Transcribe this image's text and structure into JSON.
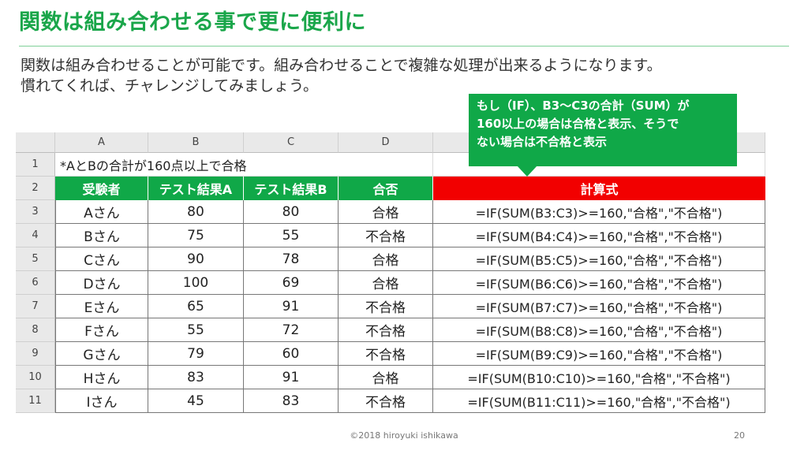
{
  "title": "関数は組み合わせる事で更に便利に",
  "description": [
    "関数は組み合わせることが可能です。組み合わせることで複雑な処理が出来るようになります。",
    "慣れてくれば、チャレンジしてみましょう。"
  ],
  "callout": [
    "もし（IF）、B3～C3の合計（SUM）が",
    "160以上の場合は合格と表示、そうで",
    "ない場合は不合格と表示"
  ],
  "sheet": {
    "column_letters": [
      "A",
      "B",
      "C",
      "D",
      ""
    ],
    "row_numbers": [
      "1",
      "2",
      "3",
      "4",
      "5",
      "6",
      "7",
      "8",
      "9",
      "10",
      "11"
    ],
    "note": "*AとBの合計が160点以上で合格",
    "headers": [
      "受験者",
      "テスト結果A",
      "テスト結果B",
      "合否",
      "計算式"
    ],
    "rows": [
      [
        "Aさん",
        "80",
        "80",
        "合格",
        "=IF(SUM(B3:C3)>=160,\"合格\",\"不合格\")"
      ],
      [
        "Bさん",
        "75",
        "55",
        "不合格",
        "=IF(SUM(B4:C4)>=160,\"合格\",\"不合格\")"
      ],
      [
        "Cさん",
        "90",
        "78",
        "合格",
        "=IF(SUM(B5:C5)>=160,\"合格\",\"不合格\")"
      ],
      [
        "Dさん",
        "100",
        "69",
        "合格",
        "=IF(SUM(B6:C6)>=160,\"合格\",\"不合格\")"
      ],
      [
        "Eさん",
        "65",
        "91",
        "不合格",
        "=IF(SUM(B7:C7)>=160,\"合格\",\"不合格\")"
      ],
      [
        "Fさん",
        "55",
        "72",
        "不合格",
        "=IF(SUM(B8:C8)>=160,\"合格\",\"不合格\")"
      ],
      [
        "Gさん",
        "79",
        "60",
        "不合格",
        "=IF(SUM(B9:C9)>=160,\"合格\",\"不合格\")"
      ],
      [
        "Hさん",
        "83",
        "91",
        "合格",
        "=IF(SUM(B10:C10)>=160,\"合格\",\"不合格\")"
      ],
      [
        "Iさん",
        "45",
        "83",
        "不合格",
        "=IF(SUM(B11:C11)>=160,\"合格\",\"不合格\")"
      ]
    ]
  },
  "footer": "©2018 hiroyuki ishikawa",
  "page_number": "20",
  "colors": {
    "accent_green": "#10a848",
    "header_red": "#f20000"
  }
}
